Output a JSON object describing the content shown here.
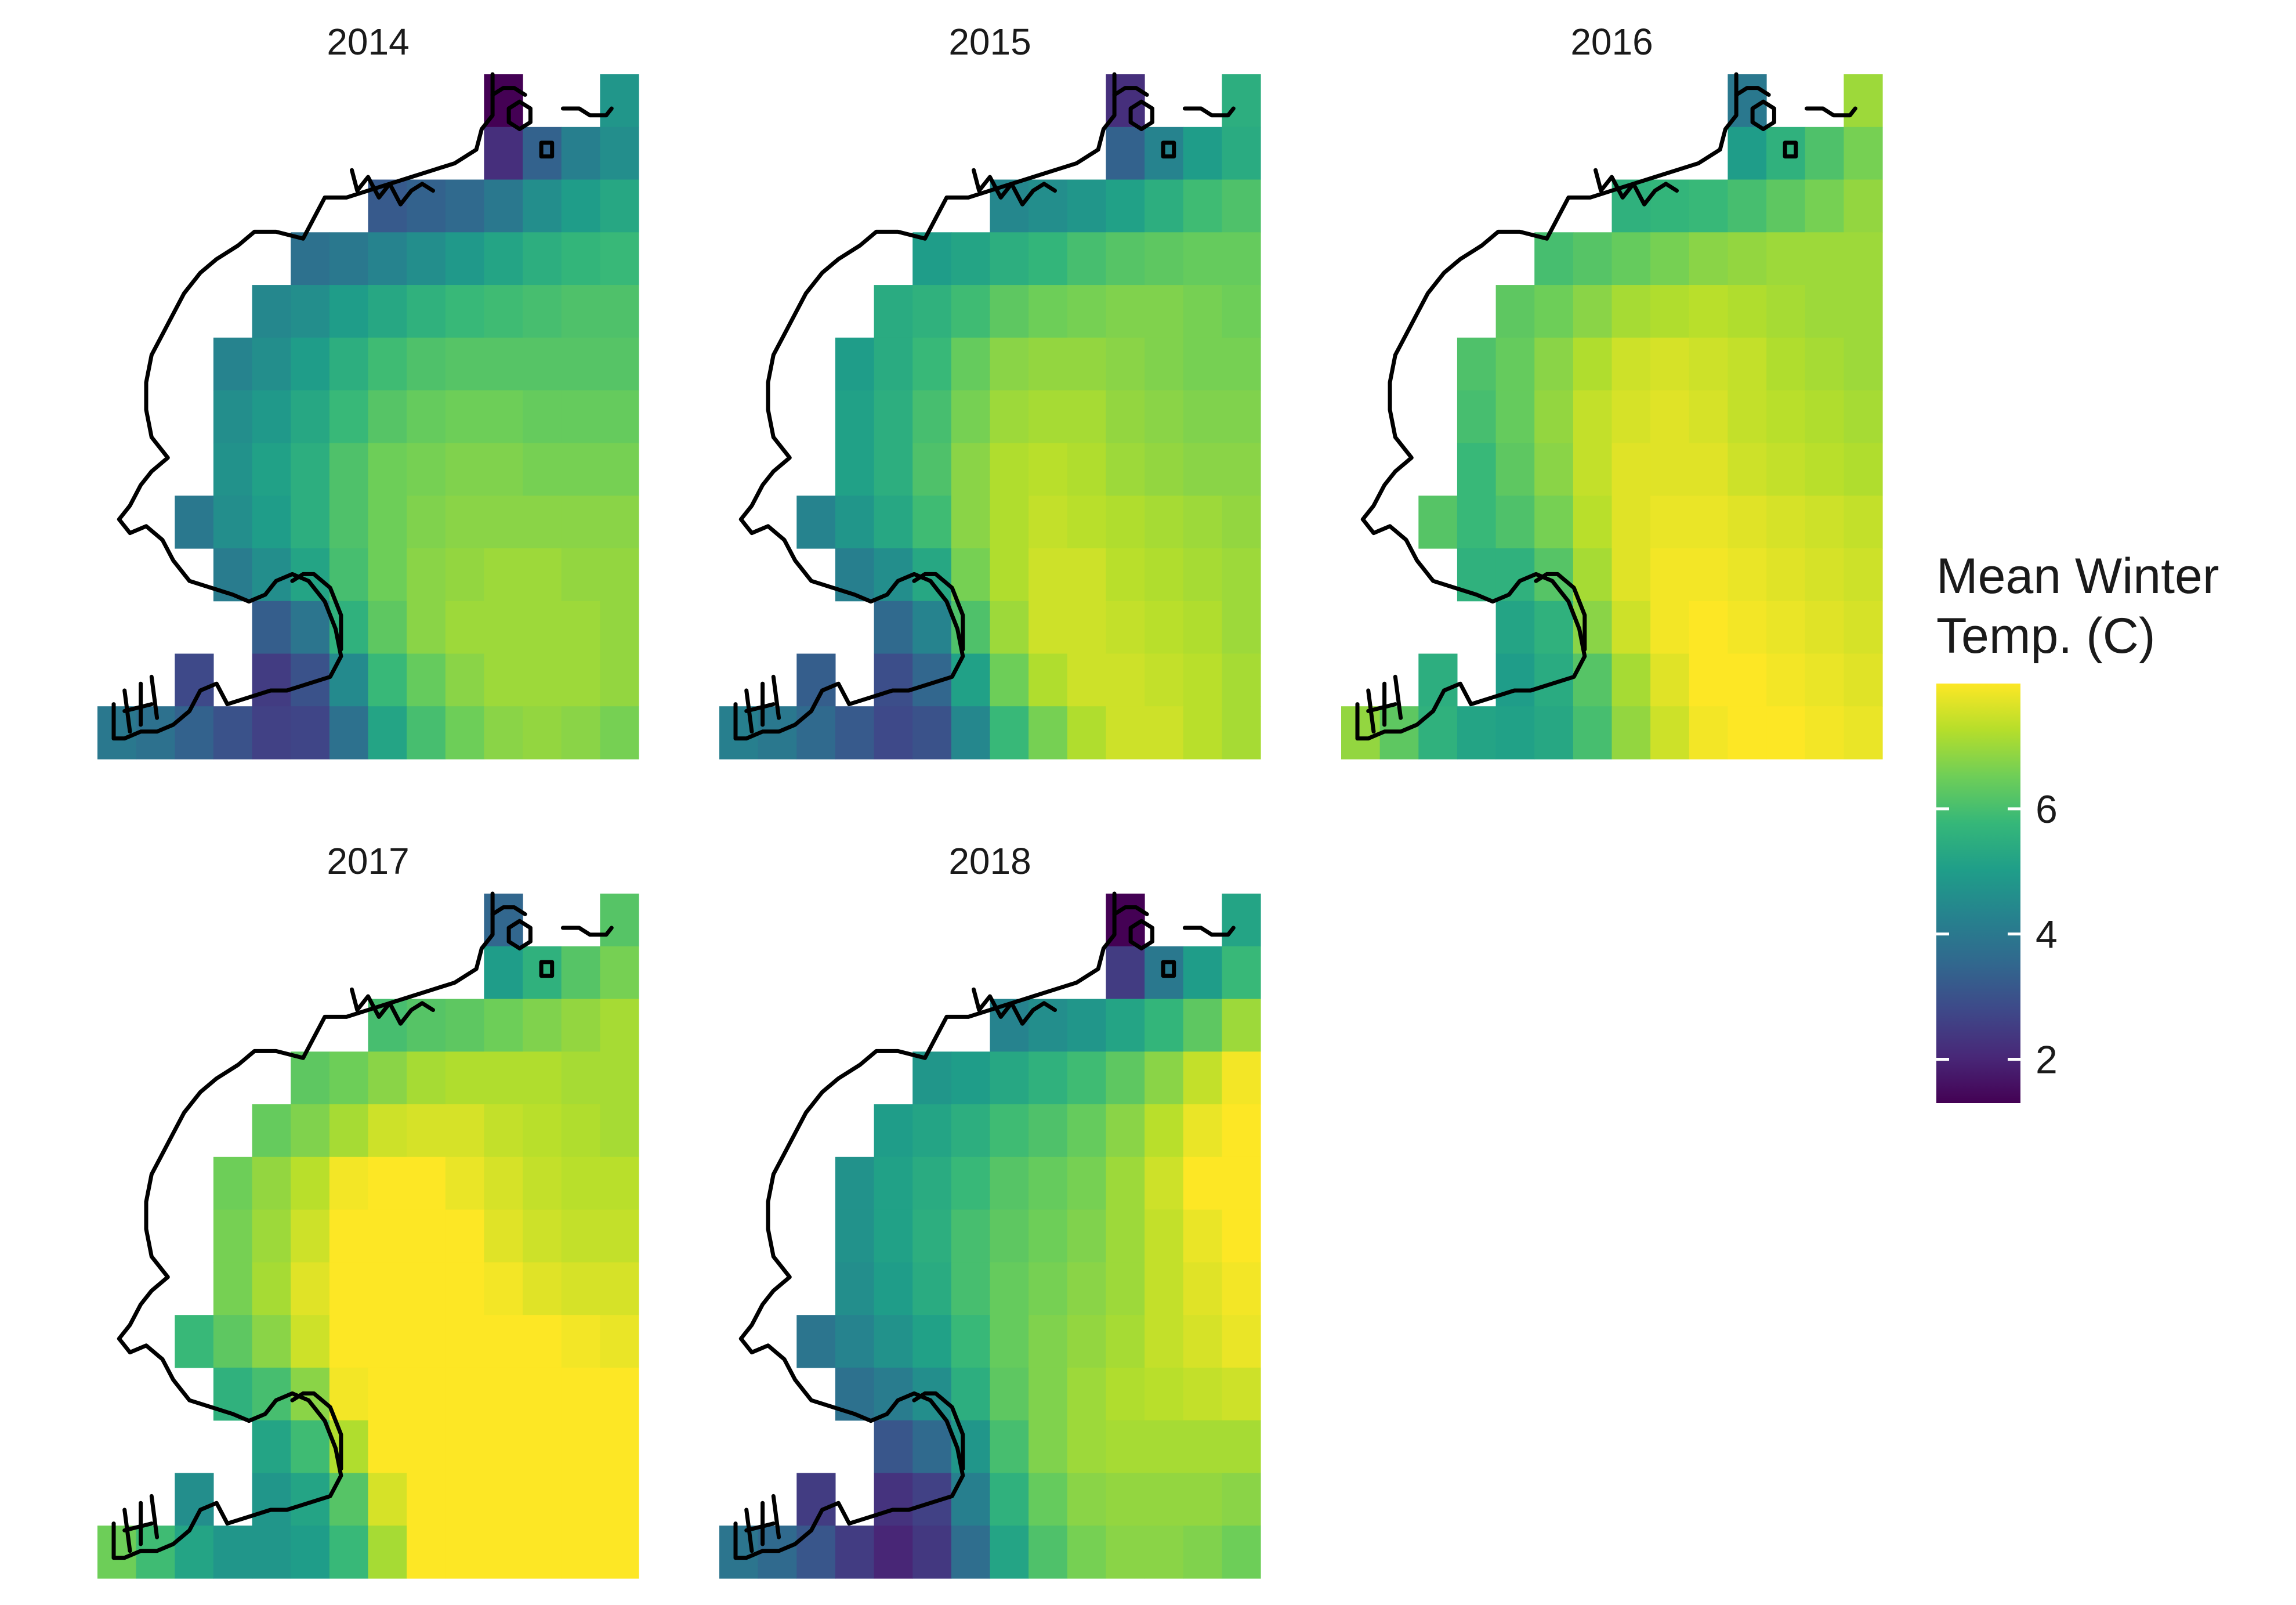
{
  "figure": {
    "legend": {
      "title_line1": "Mean Winter",
      "title_line2": "Temp. (C)",
      "ticks": [
        2,
        4,
        6
      ],
      "range": [
        1.3,
        8.0
      ]
    },
    "palette": [
      "#440154",
      "#482878",
      "#3e4989",
      "#31688e",
      "#26828e",
      "#1f9e89",
      "#35b779",
      "#6ece58",
      "#b5de2b",
      "#fde725"
    ]
  },
  "chart_data": {
    "type": "heatmap",
    "grid_cols": 14,
    "grid_rows": 13,
    "note_on_layout": "",
    "panels": [
      {
        "year": "2014",
        "values": [
          [
            null,
            null,
            null,
            null,
            null,
            null,
            null,
            null,
            null,
            null,
            1.3,
            null,
            null,
            4.8
          ],
          [
            null,
            null,
            null,
            null,
            null,
            null,
            null,
            null,
            null,
            null,
            2.2,
            3.4,
            4.2,
            4.6
          ],
          [
            null,
            null,
            null,
            null,
            null,
            null,
            null,
            3.2,
            3.4,
            3.6,
            4.0,
            4.6,
            5.0,
            5.3
          ],
          [
            null,
            null,
            null,
            null,
            null,
            3.8,
            4.0,
            4.3,
            4.6,
            4.9,
            5.2,
            5.5,
            5.7,
            5.8
          ],
          [
            null,
            null,
            null,
            null,
            4.4,
            4.6,
            5.0,
            5.3,
            5.6,
            5.8,
            5.9,
            6.0,
            6.1,
            6.1
          ],
          [
            null,
            null,
            null,
            4.3,
            4.6,
            5.0,
            5.5,
            5.9,
            6.1,
            6.2,
            6.2,
            6.2,
            6.2,
            6.2
          ],
          [
            null,
            null,
            null,
            4.6,
            4.9,
            5.3,
            5.8,
            6.2,
            6.4,
            6.5,
            6.5,
            6.4,
            6.4,
            6.4
          ],
          [
            null,
            null,
            null,
            4.7,
            5.1,
            5.5,
            6.1,
            6.5,
            6.6,
            6.7,
            6.7,
            6.6,
            6.6,
            6.6
          ],
          [
            null,
            null,
            4.0,
            4.6,
            5.0,
            5.5,
            6.1,
            6.5,
            6.7,
            6.8,
            6.8,
            6.8,
            6.8,
            6.8
          ],
          [
            null,
            null,
            null,
            4.1,
            4.6,
            5.2,
            6.0,
            6.5,
            6.8,
            6.9,
            7.0,
            7.0,
            6.9,
            6.9
          ],
          [
            null,
            null,
            null,
            null,
            3.3,
            3.9,
            5.6,
            6.3,
            6.8,
            7.0,
            7.0,
            7.0,
            7.0,
            6.9
          ],
          [
            null,
            null,
            2.8,
            null,
            2.5,
            3.0,
            4.5,
            5.8,
            6.4,
            6.8,
            7.0,
            7.0,
            7.0,
            6.9
          ],
          [
            4.0,
            3.8,
            3.4,
            3.0,
            2.6,
            2.7,
            3.8,
            5.2,
            6.0,
            6.5,
            6.8,
            6.9,
            6.8,
            6.6
          ]
        ]
      },
      {
        "year": "2015",
        "values": [
          [
            null,
            null,
            null,
            null,
            null,
            null,
            null,
            null,
            null,
            null,
            2.2,
            null,
            null,
            5.5
          ],
          [
            null,
            null,
            null,
            null,
            null,
            null,
            null,
            null,
            null,
            null,
            3.4,
            4.3,
            5.0,
            5.4
          ],
          [
            null,
            null,
            null,
            null,
            null,
            null,
            null,
            4.4,
            4.6,
            4.8,
            5.1,
            5.5,
            5.9,
            6.1
          ],
          [
            null,
            null,
            null,
            null,
            null,
            5.0,
            5.2,
            5.5,
            5.7,
            6.0,
            6.2,
            6.3,
            6.4,
            6.4
          ],
          [
            null,
            null,
            null,
            null,
            5.4,
            5.6,
            5.9,
            6.3,
            6.5,
            6.6,
            6.7,
            6.7,
            6.6,
            6.5
          ],
          [
            null,
            null,
            null,
            5.0,
            5.4,
            5.8,
            6.4,
            6.8,
            6.9,
            6.9,
            6.8,
            6.7,
            6.6,
            6.6
          ],
          [
            null,
            null,
            null,
            5.1,
            5.5,
            6.0,
            6.6,
            7.0,
            7.1,
            7.1,
            6.9,
            6.8,
            6.7,
            6.7
          ],
          [
            null,
            null,
            null,
            5.1,
            5.5,
            6.1,
            6.8,
            7.2,
            7.3,
            7.2,
            7.0,
            6.9,
            6.8,
            6.8
          ],
          [
            null,
            null,
            4.3,
            4.8,
            5.3,
            5.9,
            6.8,
            7.2,
            7.4,
            7.3,
            7.2,
            7.1,
            7.0,
            6.9
          ],
          [
            null,
            null,
            null,
            4.2,
            4.6,
            5.3,
            6.6,
            7.2,
            7.5,
            7.5,
            7.3,
            7.2,
            7.1,
            7.0
          ],
          [
            null,
            null,
            null,
            null,
            3.6,
            4.3,
            6.1,
            7.0,
            7.5,
            7.5,
            7.4,
            7.3,
            7.2,
            7.0
          ],
          [
            null,
            null,
            3.3,
            null,
            2.9,
            3.5,
            5.1,
            6.5,
            7.2,
            7.5,
            7.5,
            7.4,
            7.3,
            7.1
          ],
          [
            4.2,
            4.0,
            3.6,
            3.2,
            2.8,
            3.0,
            4.4,
            5.8,
            6.6,
            7.2,
            7.5,
            7.5,
            7.3,
            7.1
          ]
        ]
      },
      {
        "year": "2016",
        "values": [
          [
            null,
            null,
            null,
            null,
            null,
            null,
            null,
            null,
            null,
            null,
            4.0,
            null,
            null,
            7.0
          ],
          [
            null,
            null,
            null,
            null,
            null,
            null,
            null,
            null,
            null,
            null,
            5.0,
            5.6,
            6.1,
            6.6
          ],
          [
            null,
            null,
            null,
            null,
            null,
            null,
            null,
            5.6,
            5.7,
            5.8,
            6.0,
            6.3,
            6.6,
            6.9
          ],
          [
            null,
            null,
            null,
            null,
            null,
            6.0,
            6.2,
            6.4,
            6.6,
            6.8,
            6.9,
            7.0,
            7.0,
            7.0
          ],
          [
            null,
            null,
            null,
            null,
            6.3,
            6.5,
            6.8,
            7.1,
            7.2,
            7.3,
            7.2,
            7.1,
            7.0,
            7.0
          ],
          [
            null,
            null,
            null,
            6.1,
            6.4,
            6.8,
            7.2,
            7.5,
            7.6,
            7.5,
            7.4,
            7.2,
            7.1,
            7.0
          ],
          [
            null,
            null,
            null,
            6.0,
            6.4,
            6.9,
            7.4,
            7.6,
            7.7,
            7.6,
            7.4,
            7.3,
            7.2,
            7.1
          ],
          [
            null,
            null,
            null,
            5.8,
            6.3,
            6.8,
            7.4,
            7.7,
            7.7,
            7.7,
            7.5,
            7.4,
            7.3,
            7.2
          ],
          [
            null,
            null,
            6.2,
            5.8,
            6.1,
            6.6,
            7.3,
            7.7,
            7.8,
            7.8,
            7.7,
            7.6,
            7.5,
            7.4
          ],
          [
            null,
            null,
            null,
            5.6,
            5.6,
            6.2,
            7.1,
            7.7,
            7.9,
            7.9,
            7.8,
            7.7,
            7.6,
            7.5
          ],
          [
            null,
            null,
            null,
            null,
            5.2,
            5.6,
            6.8,
            7.5,
            7.9,
            8.0,
            7.9,
            7.8,
            7.7,
            7.6
          ],
          [
            null,
            null,
            5.5,
            null,
            5.0,
            5.4,
            6.2,
            7.1,
            7.7,
            8.0,
            8.0,
            7.9,
            7.8,
            7.7
          ],
          [
            6.9,
            6.3,
            5.6,
            5.2,
            5.1,
            5.3,
            6.0,
            6.9,
            7.5,
            7.9,
            8.1,
            8.0,
            7.9,
            7.8
          ]
        ]
      },
      {
        "year": "2017",
        "values": [
          [
            null,
            null,
            null,
            null,
            null,
            null,
            null,
            null,
            null,
            null,
            3.5,
            null,
            null,
            6.2
          ],
          [
            null,
            null,
            null,
            null,
            null,
            null,
            null,
            null,
            null,
            null,
            5.0,
            5.6,
            6.2,
            6.6
          ],
          [
            null,
            null,
            null,
            null,
            null,
            null,
            null,
            6.0,
            6.2,
            6.3,
            6.5,
            6.7,
            6.9,
            7.1
          ],
          [
            null,
            null,
            null,
            null,
            null,
            6.3,
            6.5,
            6.8,
            7.1,
            7.2,
            7.2,
            7.2,
            7.1,
            7.1
          ],
          [
            null,
            null,
            null,
            null,
            6.4,
            6.7,
            7.1,
            7.5,
            7.6,
            7.6,
            7.4,
            7.3,
            7.2,
            7.1
          ],
          [
            null,
            null,
            null,
            6.5,
            6.9,
            7.3,
            7.9,
            8.1,
            8.0,
            7.8,
            7.6,
            7.4,
            7.3,
            7.3
          ],
          [
            null,
            null,
            null,
            6.6,
            7.0,
            7.5,
            8.1,
            8.3,
            8.2,
            8.0,
            7.7,
            7.5,
            7.4,
            7.4
          ],
          [
            null,
            null,
            null,
            6.6,
            7.1,
            7.7,
            8.3,
            8.5,
            8.4,
            8.1,
            7.9,
            7.7,
            7.6,
            7.6
          ],
          [
            null,
            null,
            5.8,
            6.3,
            6.8,
            7.5,
            8.3,
            8.7,
            8.6,
            8.3,
            8.1,
            8.0,
            7.9,
            7.8
          ],
          [
            null,
            null,
            null,
            5.6,
            6.0,
            6.8,
            7.9,
            8.6,
            8.8,
            8.7,
            8.4,
            8.2,
            8.1,
            8.0
          ],
          [
            null,
            null,
            null,
            null,
            5.2,
            5.9,
            7.2,
            8.2,
            8.8,
            9.0,
            8.7,
            8.4,
            8.2,
            8.1
          ],
          [
            null,
            null,
            4.6,
            null,
            4.8,
            5.2,
            6.2,
            7.6,
            8.6,
            9.0,
            8.9,
            8.6,
            8.4,
            8.2
          ],
          [
            6.5,
            5.9,
            5.2,
            4.8,
            4.8,
            5.0,
            5.8,
            7.1,
            8.2,
            8.8,
            8.9,
            8.6,
            8.3,
            8.1
          ]
        ]
      },
      {
        "year": "2018",
        "values": [
          [
            null,
            null,
            null,
            null,
            null,
            null,
            null,
            null,
            null,
            null,
            1.3,
            null,
            null,
            5.2
          ],
          [
            null,
            null,
            null,
            null,
            null,
            null,
            null,
            null,
            null,
            null,
            2.5,
            4.0,
            5.0,
            5.8
          ],
          [
            null,
            null,
            null,
            null,
            null,
            null,
            null,
            4.3,
            4.6,
            4.8,
            5.2,
            5.7,
            6.3,
            7.0
          ],
          [
            null,
            null,
            null,
            null,
            null,
            4.8,
            5.0,
            5.3,
            5.6,
            5.9,
            6.3,
            6.8,
            7.4,
            7.9
          ],
          [
            null,
            null,
            null,
            null,
            5.0,
            5.2,
            5.5,
            5.9,
            6.1,
            6.4,
            6.8,
            7.3,
            7.8,
            8.3
          ],
          [
            null,
            null,
            null,
            4.7,
            5.1,
            5.4,
            5.8,
            6.2,
            6.4,
            6.6,
            7.0,
            7.5,
            8.0,
            8.4
          ],
          [
            null,
            null,
            null,
            4.7,
            5.1,
            5.5,
            6.0,
            6.3,
            6.5,
            6.7,
            7.0,
            7.4,
            7.8,
            8.1
          ],
          [
            null,
            null,
            null,
            4.6,
            5.0,
            5.4,
            6.0,
            6.4,
            6.6,
            6.8,
            7.0,
            7.4,
            7.7,
            7.9
          ],
          [
            null,
            null,
            3.9,
            4.3,
            4.7,
            5.1,
            5.8,
            6.4,
            6.7,
            6.9,
            7.1,
            7.4,
            7.6,
            7.8
          ],
          [
            null,
            null,
            null,
            3.8,
            4.1,
            4.6,
            5.5,
            6.3,
            6.7,
            7.0,
            7.2,
            7.3,
            7.4,
            7.5
          ],
          [
            null,
            null,
            null,
            null,
            3.1,
            3.6,
            4.8,
            6.0,
            6.7,
            7.0,
            7.1,
            7.1,
            7.1,
            7.1
          ],
          [
            null,
            null,
            2.5,
            null,
            2.3,
            2.6,
            4.2,
            5.6,
            6.4,
            6.8,
            6.9,
            6.9,
            6.9,
            6.8
          ],
          [
            3.9,
            3.6,
            3.1,
            2.5,
            2.0,
            2.4,
            3.7,
            5.2,
            6.1,
            6.6,
            6.8,
            6.8,
            6.7,
            6.5
          ]
        ]
      }
    ]
  }
}
